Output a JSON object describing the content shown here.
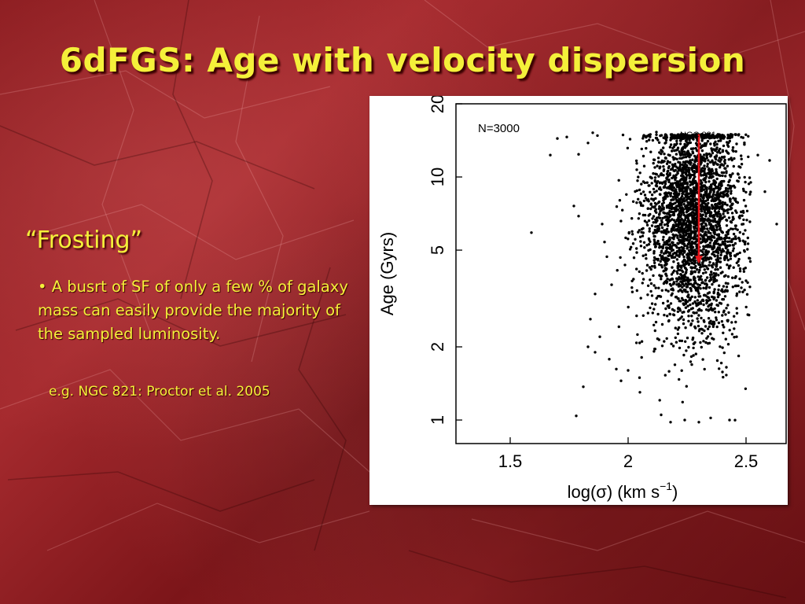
{
  "slide": {
    "title": "6dFGS: Age with velocity dispersion",
    "subheading": "“Frosting”",
    "bullet": "• A busrt of SF of only a few % of galaxy mass can easily provide the majority of the sampled luminosity.",
    "reference": "e.g. NGC 821: Proctor et al. 2005",
    "text_color": "#f4f03a",
    "background_color": "#8a1a1e"
  },
  "chart_data": {
    "type": "scatter",
    "title": "",
    "xlabel": "log(σ)  (km s",
    "xlabel_sup": "−1",
    "xlabel_end": ")",
    "ylabel": "Age (Gyrs)",
    "xlim": [
      1.27,
      2.67
    ],
    "ylim": [
      0.8,
      20
    ],
    "yscale": "log",
    "x_ticks": [
      1.5,
      2,
      2.5
    ],
    "x_tick_labels": [
      "1.5",
      "2",
      "2.5"
    ],
    "y_ticks": [
      1,
      2,
      5,
      10,
      20
    ],
    "y_tick_labels": [
      "1",
      "2",
      "5",
      "10",
      "20"
    ],
    "grid": false,
    "annotations": {
      "count": "N=3000",
      "object": "NGC 821",
      "arrow": {
        "x": 2.3,
        "from_age": 15,
        "to_age": 4.4,
        "color": "#e8141a"
      }
    },
    "series": [
      {
        "approximate_count": 3000,
        "cap_age": 15,
        "points": [
          [
            1.59,
            5.9
          ],
          [
            1.67,
            12.3
          ],
          [
            1.7,
            14.4
          ],
          [
            1.74,
            14.6
          ],
          [
            1.77,
            7.6
          ],
          [
            1.79,
            6.9
          ],
          [
            1.85,
            15.2
          ],
          [
            1.87,
            14.8
          ],
          [
            1.9,
            5.4
          ],
          [
            1.78,
            1.04
          ],
          [
            1.81,
            1.37
          ],
          [
            1.83,
            2.0
          ],
          [
            1.86,
            1.9
          ],
          [
            1.88,
            2.2
          ],
          [
            1.92,
            1.78
          ],
          [
            1.95,
            1.62
          ],
          [
            1.79,
            12.4
          ],
          [
            1.83,
            13.8
          ],
          [
            1.89,
            6.4
          ],
          [
            1.91,
            4.7
          ],
          [
            1.93,
            3.6
          ],
          [
            1.86,
            3.3
          ],
          [
            1.84,
            2.6
          ],
          [
            1.97,
            1.45
          ],
          [
            2.0,
            1.6
          ],
          [
            2.05,
            1.3
          ],
          [
            2.14,
            1.05
          ],
          [
            2.18,
            0.98
          ],
          [
            2.24,
            1.0
          ],
          [
            2.3,
            0.98
          ],
          [
            2.35,
            1.02
          ],
          [
            2.43,
            1.0
          ],
          [
            2.55,
            12.3
          ],
          [
            2.58,
            8.7
          ],
          [
            2.6,
            11.7
          ],
          [
            2.63,
            6.4
          ],
          [
            2.48,
            3.5
          ],
          [
            2.46,
            2.2
          ],
          [
            2.52,
            9.5
          ],
          [
            2.12,
            15.3
          ]
        ]
      }
    ]
  }
}
